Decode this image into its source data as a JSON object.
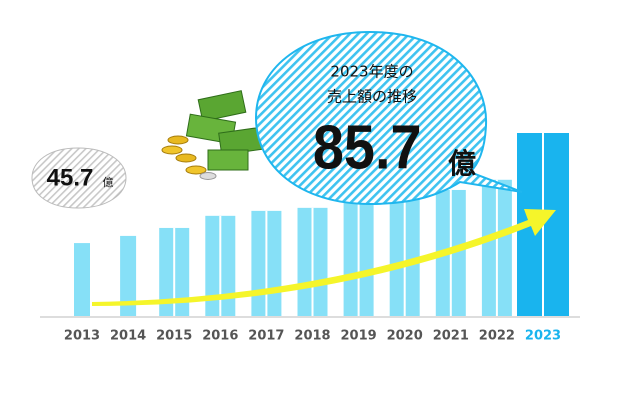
{
  "chart_data": {
    "type": "bar",
    "title_lines": [
      "2023年度の",
      "売上額の推移"
    ],
    "unit": "億",
    "categories": [
      "2013",
      "2014",
      "2015",
      "2016",
      "2017",
      "2018",
      "2019",
      "2020",
      "2021",
      "2022",
      "2023"
    ],
    "values": [
      45.7,
      48.3,
      51.2,
      55.6,
      57.4,
      58.5,
      60.7,
      62.1,
      65,
      68.7,
      85.7
    ],
    "color": "#86e0f7",
    "highlight_color": "#19b4ee",
    "highlight_index": 10,
    "ylim": [
      19.2,
      85.7
    ]
  }
}
